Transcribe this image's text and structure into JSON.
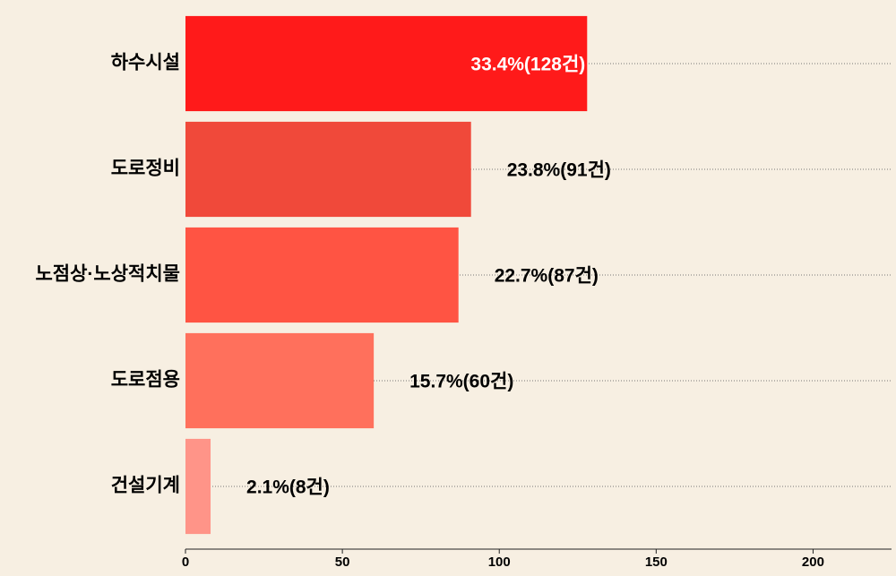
{
  "chart_data": {
    "type": "barh",
    "categories": [
      "하수시설",
      "도로정비",
      "노점상·노상적치물",
      "도로점용",
      "건설기계"
    ],
    "values": [
      128,
      91,
      87,
      60,
      8
    ],
    "value_labels": [
      "33.4%(128건)",
      "23.8%(91건)",
      "22.7%(87건)",
      "15.7%(60건)",
      "2.1%(8건)"
    ],
    "colors": [
      "#ff1a1a",
      "#f0493a",
      "#ff5443",
      "#ff705c",
      "#ff9488"
    ],
    "xlim": [
      0,
      225
    ],
    "xticks": [
      0,
      50,
      100,
      150,
      200
    ],
    "grid": true
  }
}
